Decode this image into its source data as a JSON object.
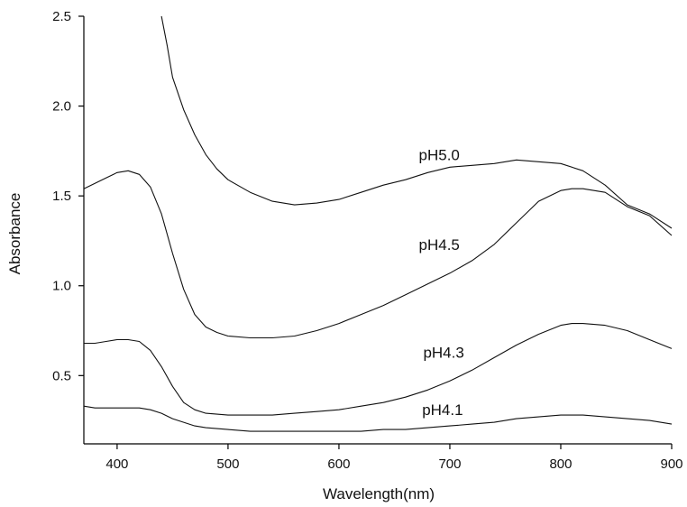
{
  "chart_data": {
    "type": "line",
    "xlabel": "Wavelength(nm)",
    "ylabel": "Absorbance",
    "xlim": [
      370,
      900
    ],
    "ylim": [
      0.12,
      2.5
    ],
    "x_ticks": [
      400,
      500,
      600,
      700,
      800,
      900
    ],
    "y_ticks": [
      0.5,
      1.0,
      1.5,
      2.0,
      2.5
    ],
    "x_tick_labels": [
      "400",
      "500",
      "600",
      "700",
      "800",
      "900"
    ],
    "y_tick_labels": [
      "0.5",
      "1.0",
      "1.5",
      "2.0",
      "2.5"
    ],
    "grid": false,
    "series": [
      {
        "name": "pH5.0",
        "label_anchor": [
          672,
          1.7
        ],
        "x": [
          440,
          445,
          450,
          460,
          470,
          480,
          490,
          500,
          520,
          540,
          560,
          580,
          600,
          620,
          640,
          660,
          680,
          700,
          720,
          740,
          760,
          780,
          800,
          820,
          840,
          860,
          880,
          900
        ],
        "y": [
          2.5,
          2.34,
          2.16,
          1.98,
          1.84,
          1.73,
          1.65,
          1.59,
          1.52,
          1.47,
          1.45,
          1.46,
          1.48,
          1.52,
          1.56,
          1.59,
          1.63,
          1.66,
          1.67,
          1.68,
          1.7,
          1.69,
          1.68,
          1.64,
          1.56,
          1.45,
          1.4,
          1.32
        ]
      },
      {
        "name": "pH4.5",
        "label_anchor": [
          672,
          1.2
        ],
        "x": [
          370,
          380,
          390,
          400,
          410,
          420,
          430,
          440,
          450,
          460,
          470,
          480,
          490,
          500,
          520,
          540,
          560,
          580,
          600,
          620,
          640,
          660,
          680,
          700,
          720,
          740,
          760,
          780,
          800,
          810,
          820,
          840,
          860,
          880,
          900
        ],
        "y": [
          1.54,
          1.57,
          1.6,
          1.63,
          1.64,
          1.62,
          1.55,
          1.4,
          1.18,
          0.98,
          0.84,
          0.77,
          0.74,
          0.72,
          0.71,
          0.71,
          0.72,
          0.75,
          0.79,
          0.84,
          0.89,
          0.95,
          1.01,
          1.07,
          1.14,
          1.23,
          1.35,
          1.47,
          1.53,
          1.54,
          1.54,
          1.52,
          1.44,
          1.39,
          1.28
        ]
      },
      {
        "name": "pH4.3",
        "label_anchor": [
          676,
          0.6
        ],
        "x": [
          370,
          380,
          390,
          400,
          410,
          420,
          430,
          440,
          450,
          460,
          470,
          480,
          500,
          520,
          540,
          560,
          580,
          600,
          620,
          640,
          660,
          680,
          700,
          720,
          740,
          760,
          780,
          800,
          810,
          820,
          840,
          860,
          880,
          900
        ],
        "y": [
          0.68,
          0.68,
          0.69,
          0.7,
          0.7,
          0.69,
          0.64,
          0.55,
          0.44,
          0.35,
          0.31,
          0.29,
          0.28,
          0.28,
          0.28,
          0.29,
          0.3,
          0.31,
          0.33,
          0.35,
          0.38,
          0.42,
          0.47,
          0.53,
          0.6,
          0.67,
          0.73,
          0.78,
          0.79,
          0.79,
          0.78,
          0.75,
          0.7,
          0.65
        ]
      },
      {
        "name": "pH4.1",
        "label_anchor": [
          675,
          0.28
        ],
        "x": [
          370,
          380,
          390,
          400,
          410,
          420,
          430,
          440,
          450,
          460,
          470,
          480,
          500,
          520,
          540,
          560,
          580,
          600,
          620,
          640,
          660,
          680,
          700,
          720,
          740,
          760,
          780,
          800,
          820,
          840,
          860,
          880,
          900
        ],
        "y": [
          0.33,
          0.32,
          0.32,
          0.32,
          0.32,
          0.32,
          0.31,
          0.29,
          0.26,
          0.24,
          0.22,
          0.21,
          0.2,
          0.19,
          0.19,
          0.19,
          0.19,
          0.19,
          0.19,
          0.2,
          0.2,
          0.21,
          0.22,
          0.23,
          0.24,
          0.26,
          0.27,
          0.28,
          0.28,
          0.27,
          0.26,
          0.25,
          0.23
        ]
      }
    ]
  }
}
